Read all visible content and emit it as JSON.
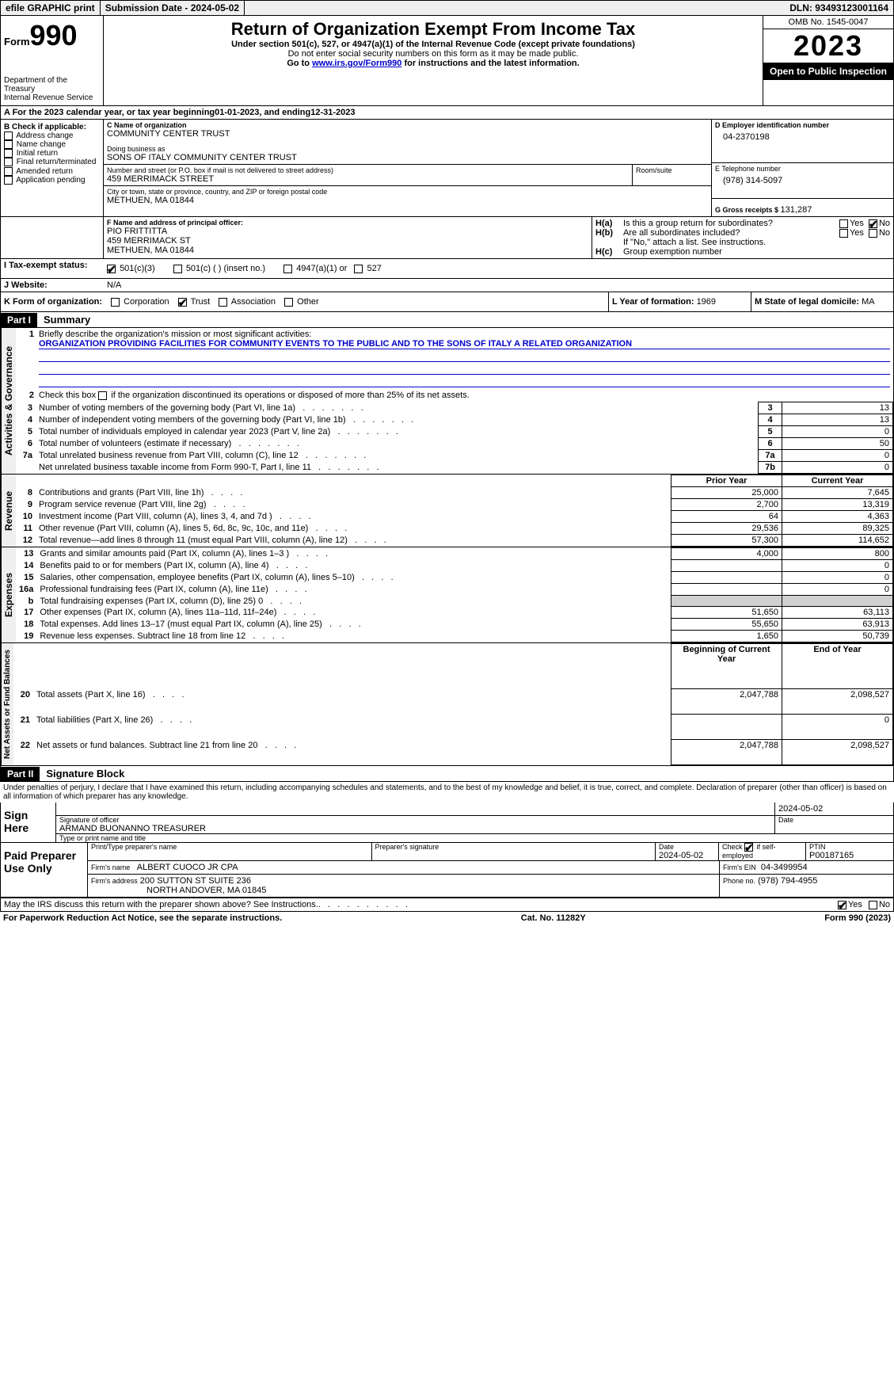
{
  "topbar": {
    "efile": "efile GRAPHIC print",
    "subdate_label": "Submission Date - ",
    "subdate": "2024-05-02",
    "dln_label": "DLN: ",
    "dln": "93493123001164"
  },
  "header": {
    "form_label": "Form",
    "form_num": "990",
    "dept": "Department of the Treasury",
    "irs": "Internal Revenue Service",
    "title": "Return of Organization Exempt From Income Tax",
    "sub1": "Under section 501(c), 527, or 4947(a)(1) of the Internal Revenue Code (except private foundations)",
    "sub2": "Do not enter social security numbers on this form as it may be made public.",
    "sub3a": "Go to ",
    "sub3_link": "www.irs.gov/Form990",
    "sub3b": " for instructions and the latest information.",
    "omb": "OMB No. 1545-0047",
    "year": "2023",
    "open": "Open to Public Inspection"
  },
  "lineA": {
    "text": "A For the 2023 calendar year, or tax year beginning ",
    "begin": "01-01-2023",
    "mid": " , and ending ",
    "end": "12-31-2023"
  },
  "boxB": {
    "label": "B Check if applicable:",
    "items": [
      "Address change",
      "Name change",
      "Initial return",
      "Final return/terminated",
      "Amended return",
      "Application pending"
    ]
  },
  "boxC": {
    "name_label": "C Name of organization",
    "name": "COMMUNITY CENTER TRUST",
    "dba_label": "Doing business as",
    "dba": "SONS OF ITALY COMMUNITY CENTER TRUST",
    "addr_label": "Number and street (or P.O. box if mail is not delivered to street address)",
    "room_label": "Room/suite",
    "addr": "459 MERRIMACK STREET",
    "city_label": "City or town, state or province, country, and ZIP or foreign postal code",
    "city": "METHUEN, MA  01844"
  },
  "boxD": {
    "label": "D Employer identification number",
    "val": "04-2370198"
  },
  "boxE": {
    "label": "E Telephone number",
    "val": "(978) 314-5097"
  },
  "boxG": {
    "label": "G Gross receipts $ ",
    "val": "131,287"
  },
  "boxF": {
    "label": "F  Name and address of principal officer:",
    "name": "PIO FRITTITTA",
    "addr1": "459 MERRIMACK ST",
    "addr2": "METHUEN, MA  01844"
  },
  "boxH": {
    "a_label": "H(a)",
    "a_text": "Is this a group return for subordinates?",
    "yes": "Yes",
    "no": "No",
    "b_label": "H(b)",
    "b_text": "Are all subordinates included?",
    "b_note": "If \"No,\" attach a list. See instructions.",
    "c_label": "H(c)",
    "c_text": "Group exemption number"
  },
  "boxI": {
    "label": "I  Tax-exempt status:",
    "o1": "501(c)(3)",
    "o2": "501(c) (  ) (insert no.)",
    "o3": "4947(a)(1) or",
    "o4": "527"
  },
  "boxJ": {
    "label": "J  Website:",
    "val": "N/A"
  },
  "boxK": {
    "label": "K Form of organization:",
    "o1": "Corporation",
    "o2": "Trust",
    "o3": "Association",
    "o4": "Other"
  },
  "boxL": {
    "label": "L Year of formation: ",
    "val": "1969"
  },
  "boxM": {
    "label": "M State of legal domicile: ",
    "val": "MA"
  },
  "part1": {
    "hdr": "Part I",
    "title": "Summary",
    "l1_label": "Briefly describe the organization's mission or most significant activities:",
    "l1_text": "ORGANIZATION PROVIDING FACILITIES FOR COMMUNITY EVENTS TO THE PUBLIC AND TO THE SONS OF ITALY A RELATED ORGANIZATION",
    "l2": "Check this box      if the organization discontinued its operations or disposed of more than 25% of its net assets.",
    "rows_gov": [
      {
        "n": "3",
        "d": "Number of voting members of the governing body (Part VI, line 1a)",
        "c": "3",
        "v": "13"
      },
      {
        "n": "4",
        "d": "Number of independent voting members of the governing body (Part VI, line 1b)",
        "c": "4",
        "v": "13"
      },
      {
        "n": "5",
        "d": "Total number of individuals employed in calendar year 2023 (Part V, line 2a)",
        "c": "5",
        "v": "0"
      },
      {
        "n": "6",
        "d": "Total number of volunteers (estimate if necessary)",
        "c": "6",
        "v": "50"
      },
      {
        "n": "7a",
        "d": "Total unrelated business revenue from Part VIII, column (C), line 12",
        "c": "7a",
        "v": "0"
      },
      {
        "n": "",
        "d": "Net unrelated business taxable income from Form 990-T, Part I, line 11",
        "c": "7b",
        "v": "0"
      }
    ],
    "prior_hdr": "Prior Year",
    "curr_hdr": "Current Year",
    "rows_rev": [
      {
        "n": "8",
        "d": "Contributions and grants (Part VIII, line 1h)",
        "p": "25,000",
        "v": "7,645"
      },
      {
        "n": "9",
        "d": "Program service revenue (Part VIII, line 2g)",
        "p": "2,700",
        "v": "13,319"
      },
      {
        "n": "10",
        "d": "Investment income (Part VIII, column (A), lines 3, 4, and 7d )",
        "p": "64",
        "v": "4,363"
      },
      {
        "n": "11",
        "d": "Other revenue (Part VIII, column (A), lines 5, 6d, 8c, 9c, 10c, and 11e)",
        "p": "29,536",
        "v": "89,325"
      },
      {
        "n": "12",
        "d": "Total revenue—add lines 8 through 11 (must equal Part VIII, column (A), line 12)",
        "p": "57,300",
        "v": "114,652"
      }
    ],
    "rows_exp": [
      {
        "n": "13",
        "d": "Grants and similar amounts paid (Part IX, column (A), lines 1–3 )",
        "p": "4,000",
        "v": "800"
      },
      {
        "n": "14",
        "d": "Benefits paid to or for members (Part IX, column (A), line 4)",
        "p": "",
        "v": "0"
      },
      {
        "n": "15",
        "d": "Salaries, other compensation, employee benefits (Part IX, column (A), lines 5–10)",
        "p": "",
        "v": "0"
      },
      {
        "n": "16a",
        "d": "Professional fundraising fees (Part IX, column (A), line 11e)",
        "p": "",
        "v": "0"
      },
      {
        "n": "b",
        "d": "Total fundraising expenses (Part IX, column (D), line 25) 0",
        "p": "grey",
        "v": "grey"
      },
      {
        "n": "17",
        "d": "Other expenses (Part IX, column (A), lines 11a–11d, 11f–24e)",
        "p": "51,650",
        "v": "63,113"
      },
      {
        "n": "18",
        "d": "Total expenses. Add lines 13–17 (must equal Part IX, column (A), line 25)",
        "p": "55,650",
        "v": "63,913"
      },
      {
        "n": "19",
        "d": "Revenue less expenses. Subtract line 18 from line 12",
        "p": "1,650",
        "v": "50,739"
      }
    ],
    "beg_hdr": "Beginning of Current Year",
    "end_hdr": "End of Year",
    "rows_net": [
      {
        "n": "20",
        "d": "Total assets (Part X, line 16)",
        "p": "2,047,788",
        "v": "2,098,527"
      },
      {
        "n": "21",
        "d": "Total liabilities (Part X, line 26)",
        "p": "",
        "v": "0"
      },
      {
        "n": "22",
        "d": "Net assets or fund balances. Subtract line 21 from line 20",
        "p": "2,047,788",
        "v": "2,098,527"
      }
    ],
    "tabs": {
      "gov": "Activities & Governance",
      "rev": "Revenue",
      "exp": "Expenses",
      "net": "Net Assets or Fund Balances"
    }
  },
  "part2": {
    "hdr": "Part II",
    "title": "Signature Block",
    "penalty": "Under penalties of perjury, I declare that I have examined this return, including accompanying schedules and statements, and to the best of my knowledge and belief, it is true, correct, and complete. Declaration of preparer (other than officer) is based on all information of which preparer has any knowledge.",
    "sign_here": "Sign Here",
    "sig_officer": "Signature of officer",
    "sig_date": "Date",
    "date_val": "2024-05-02",
    "officer_name": "ARMAND BUONANNO  TREASURER",
    "type_name": "Type or print name and title",
    "paid": "Paid Preparer Use Only",
    "prep_name_label": "Print/Type preparer's name",
    "prep_sig_label": "Preparer's signature",
    "prep_date_label": "Date",
    "prep_date": "2024-05-02",
    "check_self": "Check        if self-employed",
    "ptin_label": "PTIN",
    "ptin": "P00187165",
    "firm_name_label": "Firm's name",
    "firm_name": "ALBERT CUOCO JR CPA",
    "firm_ein_label": "Firm's EIN",
    "firm_ein": "04-3499954",
    "firm_addr_label": "Firm's address",
    "firm_addr1": "200 SUTTON ST SUITE 236",
    "firm_addr2": "NORTH ANDOVER, MA  01845",
    "phone_label": "Phone no.",
    "phone": "(978) 794-4955",
    "discuss": "May the IRS discuss this return with the preparer shown above? See Instructions."
  },
  "footer": {
    "pra": "For Paperwork Reduction Act Notice, see the separate instructions.",
    "cat": "Cat. No. 11282Y",
    "form": "Form 990 (2023)"
  }
}
